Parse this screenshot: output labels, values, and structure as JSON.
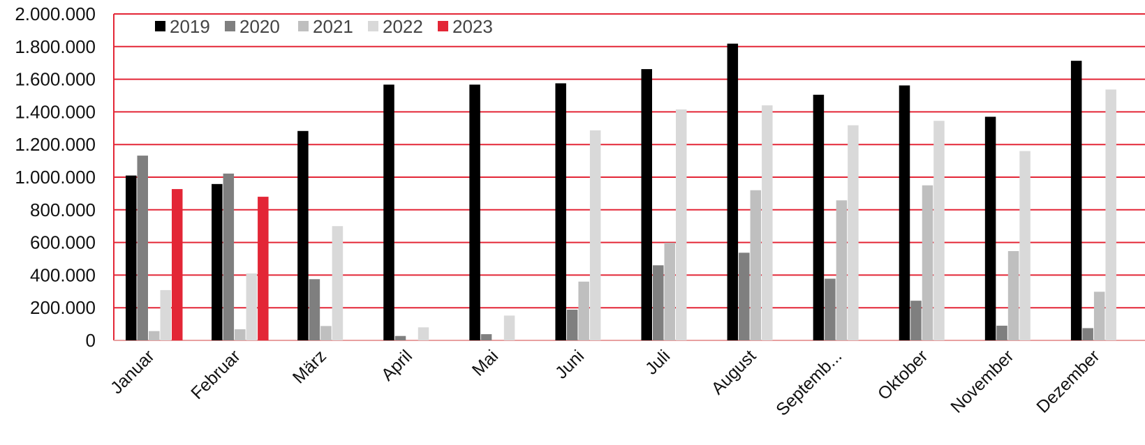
{
  "chart_data": {
    "type": "bar",
    "categories": [
      "Januar",
      "Februar",
      "März",
      "April",
      "Mai",
      "Juni",
      "Juli",
      "August",
      "Septemb...",
      "Oktober",
      "November",
      "Dezember"
    ],
    "series": [
      {
        "name": "2019",
        "color": "#000000",
        "values": [
          1010000,
          958000,
          1283000,
          1567000,
          1567000,
          1575000,
          1662000,
          1818000,
          1505000,
          1562000,
          1370000,
          1713000
        ]
      },
      {
        "name": "2020",
        "color": "#7f7f7f",
        "values": [
          1132000,
          1022000,
          375000,
          27000,
          38000,
          188000,
          460000,
          537000,
          378000,
          243000,
          90000,
          75000
        ]
      },
      {
        "name": "2021",
        "color": "#bfbfbf",
        "values": [
          57000,
          68000,
          88000,
          0,
          0,
          360000,
          598000,
          920000,
          858000,
          950000,
          547000,
          298000
        ]
      },
      {
        "name": "2022",
        "color": "#d9d9d9",
        "values": [
          308000,
          410000,
          700000,
          80000,
          152000,
          1287000,
          1415000,
          1440000,
          1318000,
          1345000,
          1160000,
          1537000
        ]
      },
      {
        "name": "2023",
        "color": "#e32636",
        "values": [
          927000,
          880000,
          null,
          null,
          null,
          null,
          null,
          null,
          null,
          null,
          null,
          null
        ]
      }
    ],
    "ylim": [
      0,
      2000000
    ],
    "yticks": [
      "0",
      "200.000",
      "400.000",
      "600.000",
      "800.000",
      "1.000.000",
      "1.200.000",
      "1.400.000",
      "1.600.000",
      "1.800.000",
      "2.000.000"
    ],
    "ytick_values": [
      0,
      200000,
      400000,
      600000,
      800000,
      1000000,
      1200000,
      1400000,
      1600000,
      1800000,
      2000000
    ],
    "grid": true,
    "grid_color": "#e32636",
    "legend_position": "top-left",
    "title": "",
    "xlabel": "",
    "ylabel": ""
  }
}
